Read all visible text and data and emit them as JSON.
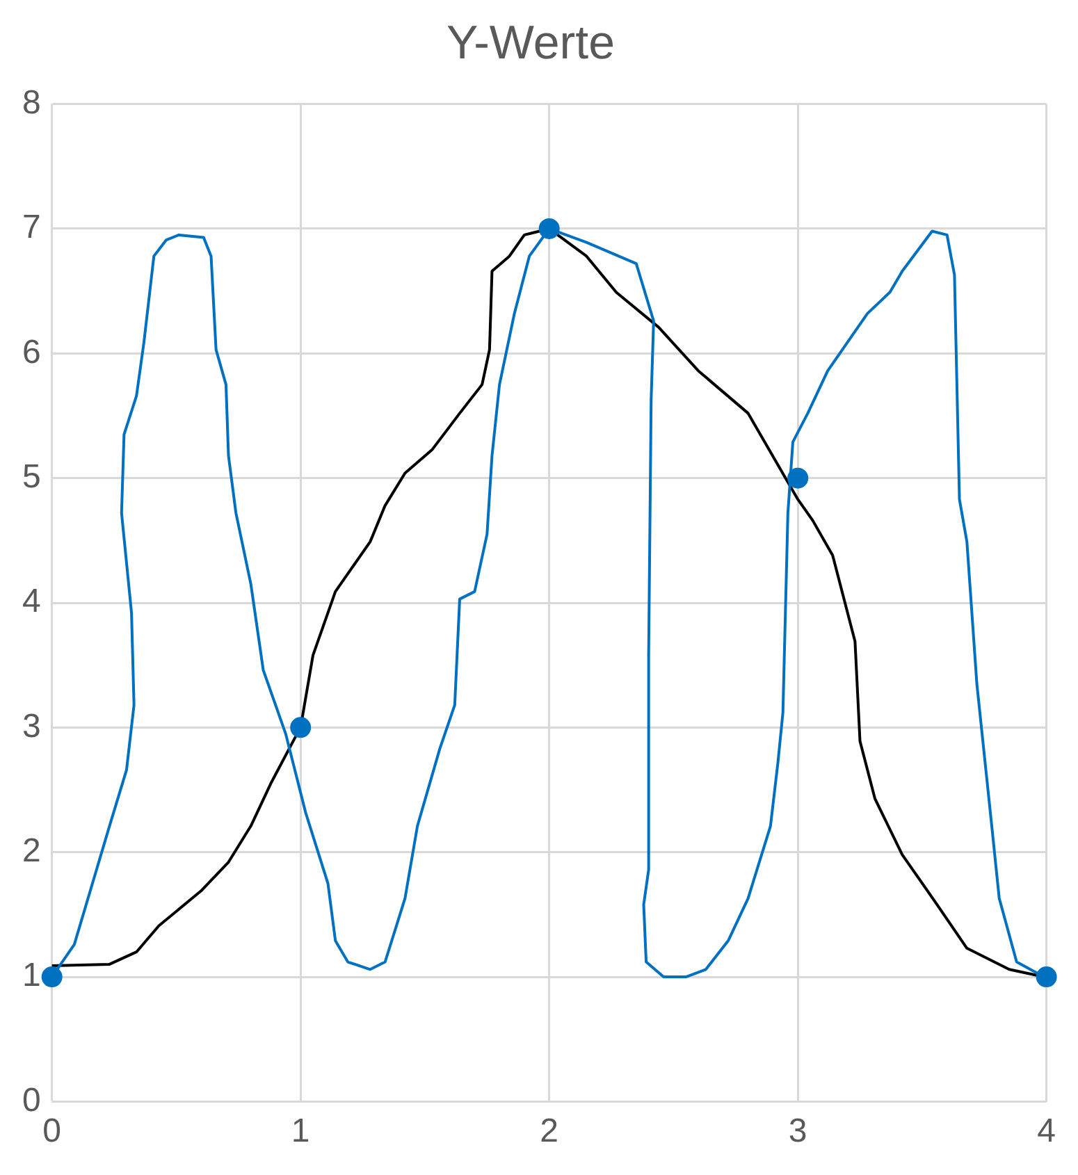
{
  "chart_data": {
    "type": "scatter",
    "title": "Y-Werte",
    "xlim": [
      0,
      4
    ],
    "ylim": [
      0,
      8
    ],
    "xticks": [
      0,
      1,
      2,
      3,
      4
    ],
    "yticks": [
      0,
      1,
      2,
      3,
      4,
      5,
      6,
      7,
      8
    ],
    "grid": true,
    "legend": false,
    "series": [
      {
        "type": "line",
        "color": "#0070c0",
        "marker": "none",
        "x": [
          0,
          0.09,
          0.23,
          0.3,
          0.33,
          0.32,
          0.28,
          0.29,
          0.34,
          0.37,
          0.41,
          0.46,
          0.51,
          0.61,
          0.64,
          0.66,
          0.7,
          0.71,
          0.74,
          0.8,
          0.85,
          0.94,
          1.02,
          1.11,
          1.14,
          1.19,
          1.28,
          1.34,
          1.42,
          1.47,
          1.56,
          1.62,
          1.64,
          1.7,
          1.75,
          1.77,
          1.8,
          1.86,
          1.92,
          2,
          2.15,
          2.35,
          2.42,
          2.41,
          2.4,
          2.4,
          2.38,
          2.39,
          2.46,
          2.55,
          2.63,
          2.72,
          2.8,
          2.89,
          2.92,
          2.94,
          2.96,
          2.98,
          3.04,
          3.12,
          3.28,
          3.37,
          3.42,
          3.54,
          3.6,
          3.63,
          3.65,
          3.68,
          3.72,
          3.78,
          3.81,
          3.88,
          3.99
        ],
        "values": [
          1,
          1.26,
          2.2,
          2.66,
          3.18,
          3.92,
          4.72,
          5.35,
          5.66,
          6.09,
          6.78,
          6.91,
          6.95,
          6.93,
          6.78,
          6.03,
          5.75,
          5.18,
          4.72,
          4.15,
          3.46,
          2.95,
          2.32,
          1.75,
          1.29,
          1.12,
          1.06,
          1.12,
          1.63,
          2.21,
          2.83,
          3.18,
          4.03,
          4.09,
          4.55,
          5.18,
          5.75,
          6.32,
          6.78,
          7,
          6.89,
          6.72,
          6.26,
          5.63,
          3.58,
          1.86,
          1.58,
          1.12,
          1,
          1,
          1.06,
          1.29,
          1.63,
          2.21,
          2.72,
          3.12,
          4.72,
          5.29,
          5.52,
          5.86,
          6.32,
          6.49,
          6.66,
          6.98,
          6.95,
          6.63,
          4.83,
          4.49,
          3.35,
          2.21,
          1.63,
          1.12,
          1
        ]
      },
      {
        "type": "line",
        "color": "#000000",
        "marker": "none",
        "x": [
          0,
          0.23,
          0.34,
          0.43,
          0.6,
          0.71,
          0.8,
          0.88,
          0.97,
          1,
          1.05,
          1.14,
          1.28,
          1.34,
          1.42,
          1.53,
          1.64,
          1.73,
          1.76,
          1.77,
          1.84,
          1.9,
          2,
          2.15,
          2.27,
          2.44,
          2.6,
          2.8,
          3,
          3.06,
          3.14,
          3.23,
          3.25,
          3.31,
          3.42,
          3.56,
          3.68,
          3.85,
          3.99
        ],
        "values": [
          1.09,
          1.1,
          1.2,
          1.41,
          1.69,
          1.92,
          2.21,
          2.55,
          2.89,
          3,
          3.58,
          4.09,
          4.49,
          4.78,
          5.04,
          5.23,
          5.52,
          5.75,
          6.03,
          6.66,
          6.78,
          6.95,
          7,
          6.78,
          6.49,
          6.21,
          5.86,
          5.52,
          4.83,
          4.66,
          4.38,
          3.69,
          2.89,
          2.43,
          1.98,
          1.58,
          1.23,
          1.06,
          1
        ]
      },
      {
        "type": "scatter",
        "color": "#0070c0",
        "marker": "circle",
        "x": [
          0,
          1,
          2,
          3,
          4
        ],
        "values": [
          1,
          3,
          7,
          5,
          1
        ]
      }
    ]
  }
}
